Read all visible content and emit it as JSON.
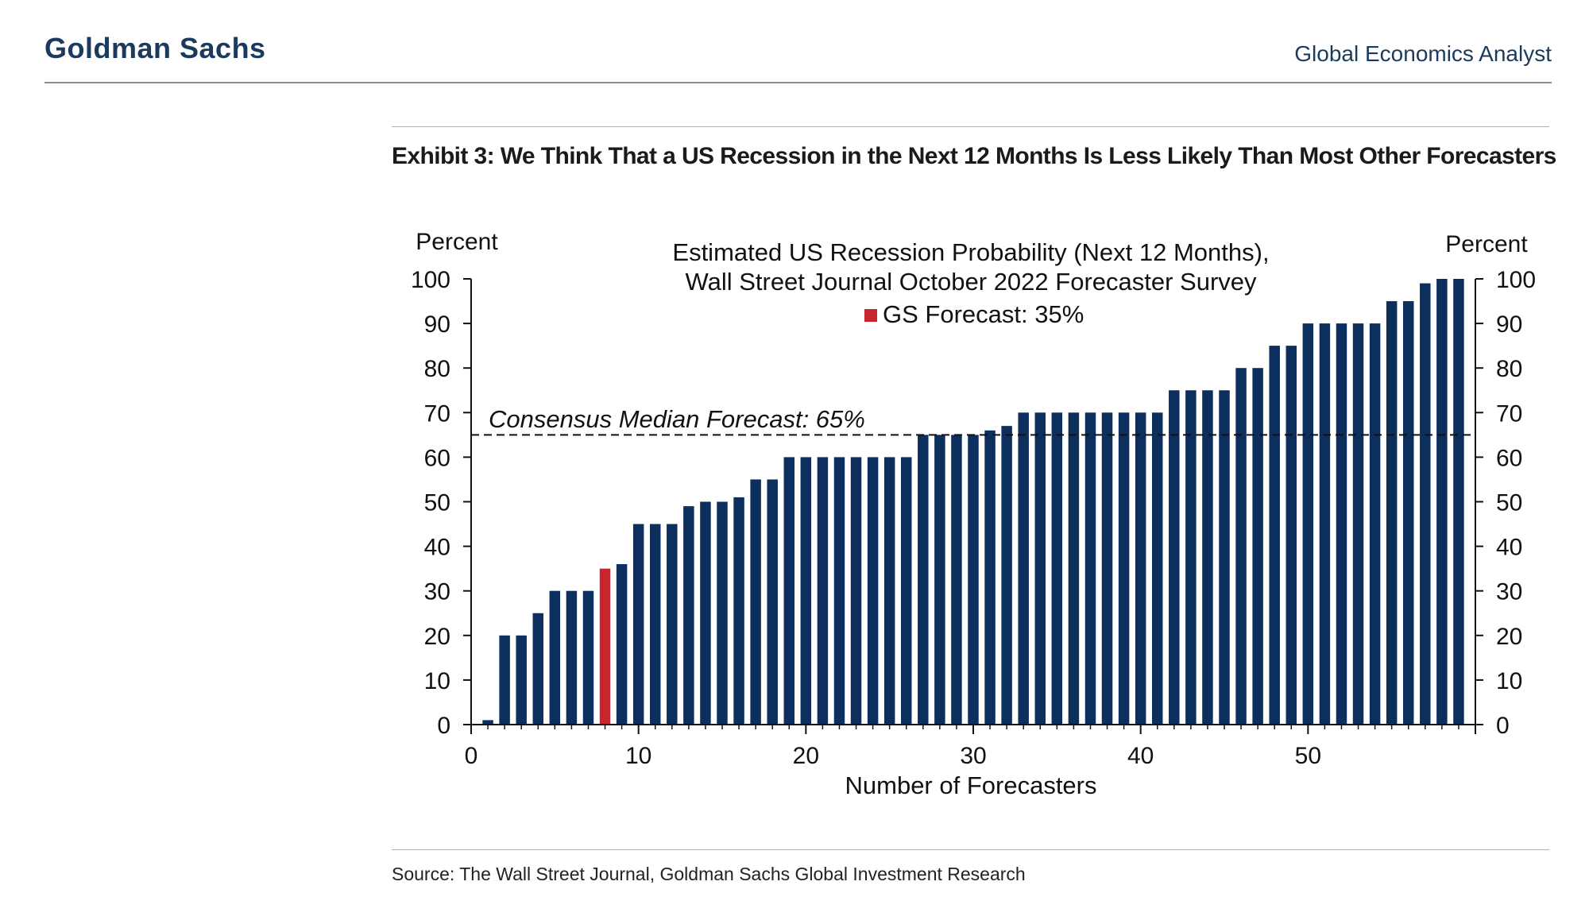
{
  "header": {
    "brand": "Goldman Sachs",
    "report_name": "Global Economics Analyst"
  },
  "exhibit": {
    "title": "Exhibit 3: We Think That a US Recession in the Next 12 Months Is Less Likely Than Most Other Forecasters",
    "source": "Source: The Wall Street Journal, Goldman Sachs Global Investment Research"
  },
  "colors": {
    "bars": "#0c2f5e",
    "highlight": "#c8262e",
    "brand": "#1b3a5e"
  },
  "chart_data": {
    "type": "bar",
    "title_lines": [
      "Estimated US Recession Probability (Next 12 Months),",
      "Wall Street Journal October 2022 Forecaster Survey"
    ],
    "legend": [
      {
        "label": "GS Forecast: 35%",
        "color": "#c8262e"
      }
    ],
    "ylabel_left": "Percent",
    "ylabel_right": "Percent",
    "xlabel": "Number of Forecasters",
    "xlim": [
      0,
      60
    ],
    "ylim": [
      0,
      100
    ],
    "xticks": [
      0,
      10,
      20,
      30,
      40,
      50
    ],
    "yticks": [
      0,
      10,
      20,
      30,
      40,
      50,
      60,
      70,
      80,
      90,
      100
    ],
    "grid": false,
    "x": [
      1,
      2,
      3,
      4,
      5,
      6,
      7,
      8,
      9,
      10,
      11,
      12,
      13,
      14,
      15,
      16,
      17,
      18,
      19,
      20,
      21,
      22,
      23,
      24,
      25,
      26,
      27,
      28,
      29,
      30,
      31,
      32,
      33,
      34,
      35,
      36,
      37,
      38,
      39,
      40,
      41,
      42,
      43,
      44,
      45,
      46,
      47,
      48,
      49,
      50,
      51,
      52,
      53,
      54,
      55,
      56,
      57,
      58,
      59
    ],
    "values": [
      1,
      20,
      20,
      25,
      30,
      30,
      30,
      35,
      36,
      45,
      45,
      45,
      49,
      50,
      50,
      51,
      55,
      55,
      60,
      60,
      60,
      60,
      60,
      60,
      60,
      60,
      65,
      65,
      65,
      65,
      66,
      67,
      70,
      70,
      70,
      70,
      70,
      70,
      70,
      70,
      70,
      75,
      75,
      75,
      75,
      80,
      80,
      85,
      85,
      90,
      90,
      90,
      90,
      90,
      95,
      95,
      99,
      100,
      100
    ],
    "highlight": {
      "x": 8,
      "value": 35,
      "label": "GS Forecast"
    },
    "reference_line": {
      "value": 65,
      "style": "dashed",
      "label": "Consensus Median Forecast: 65%"
    }
  }
}
